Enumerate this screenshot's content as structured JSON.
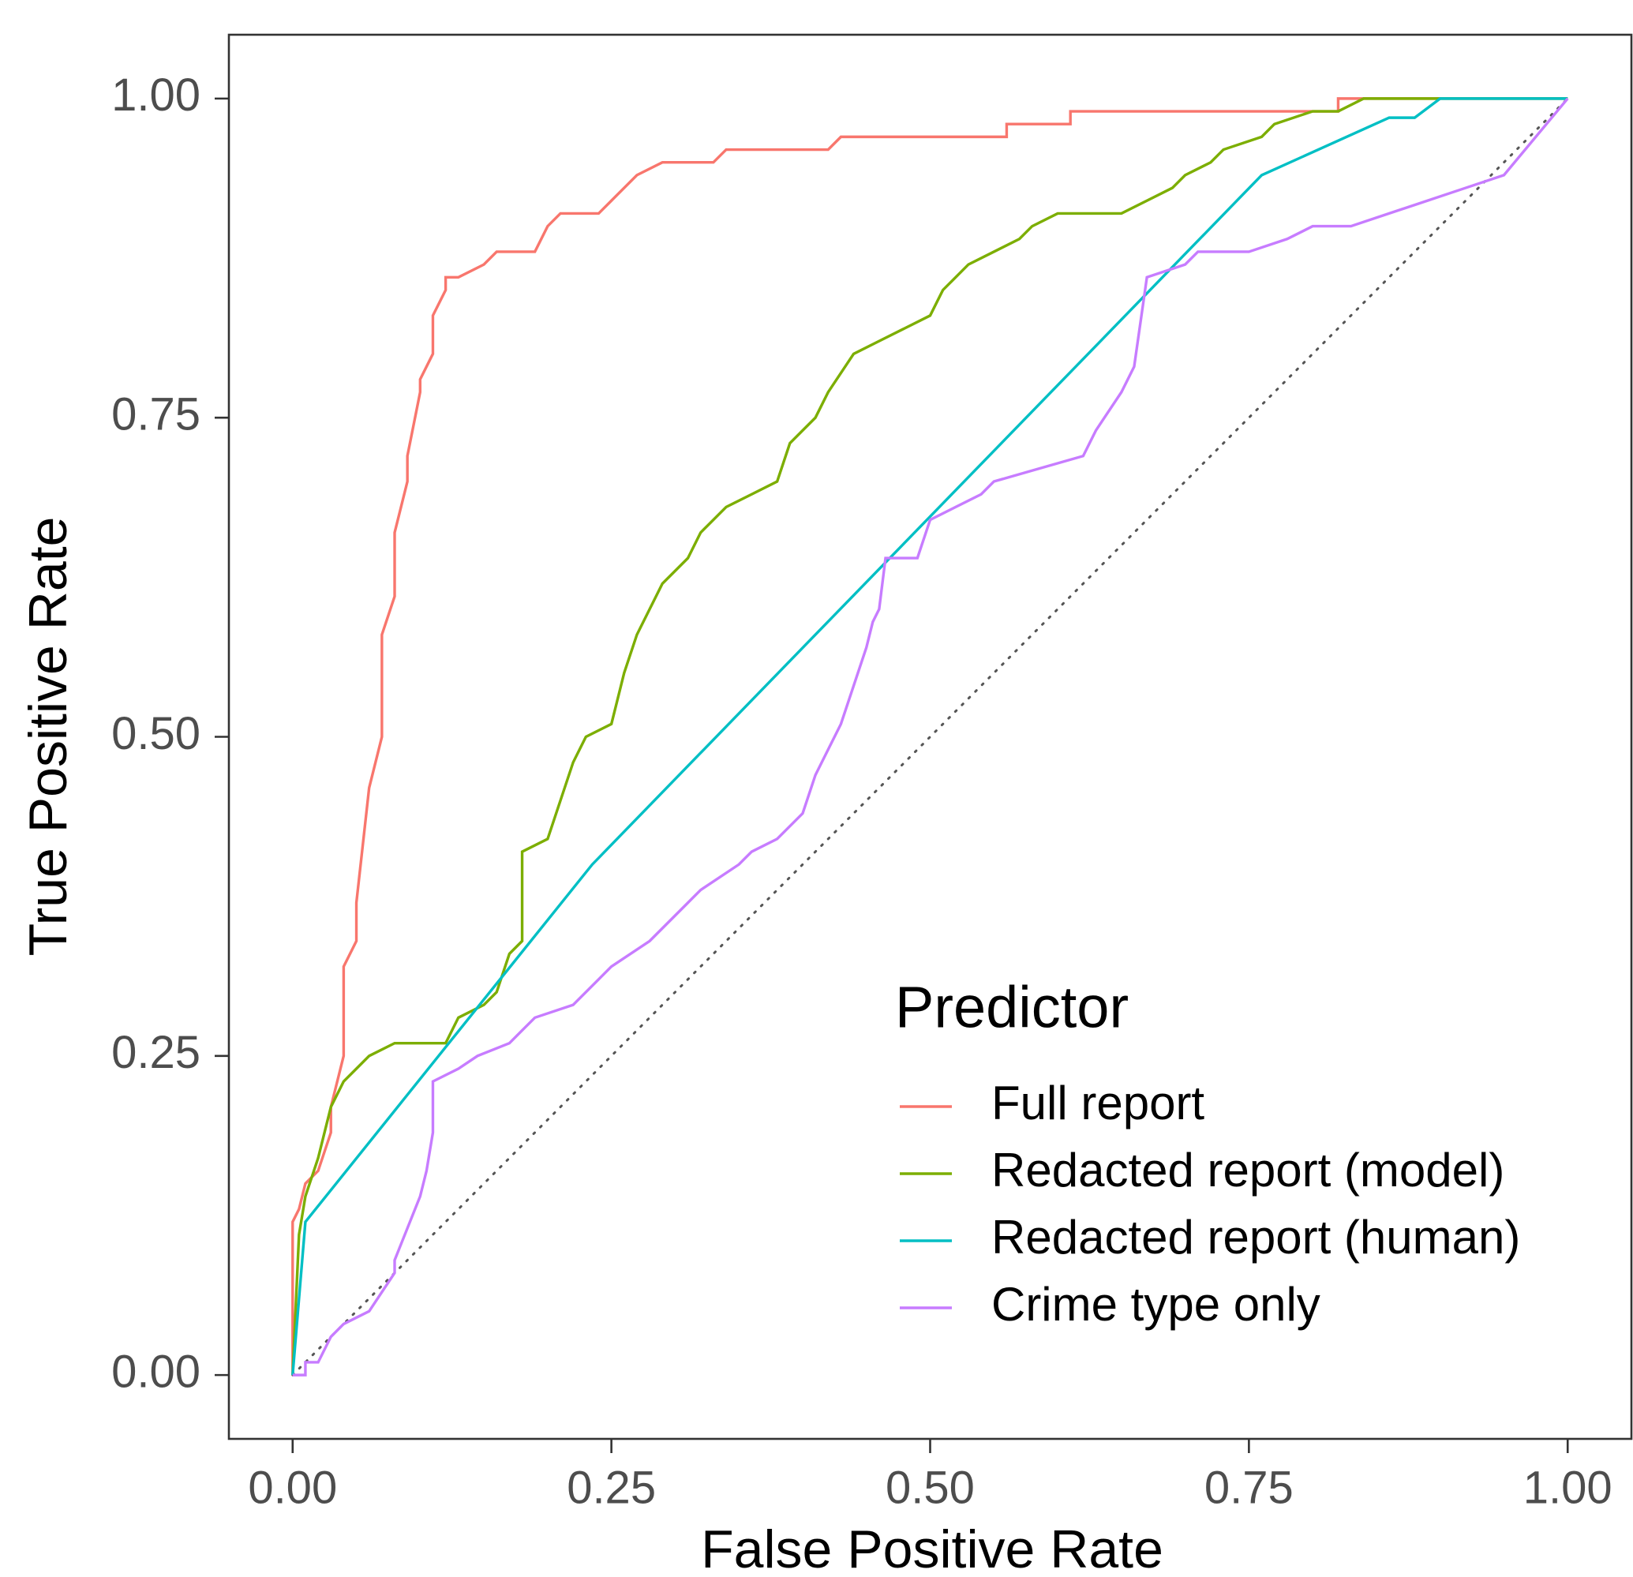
{
  "chart_data": {
    "type": "line",
    "xlabel": "False Positive Rate",
    "ylabel": "True Positive Rate",
    "legend_title": "Predictor",
    "legend": "bottom-right",
    "xlim": [
      -0.05,
      1.05
    ],
    "ylim": [
      -0.05,
      1.05
    ],
    "xticks": [
      {
        "value": 0,
        "label": "0.00"
      },
      {
        "value": 0.25,
        "label": "0.25"
      },
      {
        "value": 0.5,
        "label": "0.50"
      },
      {
        "value": 0.75,
        "label": "0.75"
      },
      {
        "value": 1,
        "label": "1.00"
      }
    ],
    "yticks": [
      {
        "value": 0,
        "label": "0.00"
      },
      {
        "value": 0.25,
        "label": "0.25"
      },
      {
        "value": 0.5,
        "label": "0.50"
      },
      {
        "value": 0.75,
        "label": "0.75"
      },
      {
        "value": 1,
        "label": "1.00"
      }
    ],
    "series": [
      {
        "name": "Full report",
        "color": "#F8766D",
        "x": [
          0,
          0,
          0.005,
          0.01,
          0.02,
          0.03,
          0.03,
          0.04,
          0.04,
          0.05,
          0.05,
          0.06,
          0.07,
          0.07,
          0.08,
          0.08,
          0.09,
          0.09,
          0.1,
          0.1,
          0.11,
          0.11,
          0.12,
          0.12,
          0.13,
          0.15,
          0.16,
          0.17,
          0.19,
          0.2,
          0.21,
          0.24,
          0.25,
          0.26,
          0.27,
          0.29,
          0.33,
          0.34,
          0.42,
          0.43,
          0.56,
          0.56,
          0.61,
          0.61,
          0.82,
          0.82,
          0.85,
          0.85,
          0.9,
          1.0
        ],
        "values": [
          0,
          0.12,
          0.13,
          0.15,
          0.16,
          0.19,
          0.21,
          0.25,
          0.32,
          0.34,
          0.37,
          0.46,
          0.5,
          0.58,
          0.61,
          0.66,
          0.7,
          0.72,
          0.77,
          0.78,
          0.8,
          0.83,
          0.85,
          0.86,
          0.86,
          0.87,
          0.88,
          0.88,
          0.88,
          0.9,
          0.91,
          0.91,
          0.92,
          0.93,
          0.94,
          0.95,
          0.95,
          0.96,
          0.96,
          0.97,
          0.97,
          0.98,
          0.98,
          0.99,
          0.99,
          1.0,
          1.0,
          1.0,
          1.0,
          1.0
        ]
      },
      {
        "name": "Redacted report (model)",
        "color": "#7CAE00",
        "x": [
          0,
          0.005,
          0.01,
          0.02,
          0.03,
          0.04,
          0.05,
          0.06,
          0.08,
          0.12,
          0.13,
          0.15,
          0.16,
          0.17,
          0.18,
          0.18,
          0.2,
          0.21,
          0.22,
          0.23,
          0.25,
          0.26,
          0.27,
          0.28,
          0.29,
          0.31,
          0.32,
          0.34,
          0.36,
          0.38,
          0.39,
          0.41,
          0.42,
          0.44,
          0.46,
          0.48,
          0.5,
          0.51,
          0.52,
          0.53,
          0.55,
          0.57,
          0.58,
          0.6,
          0.62,
          0.65,
          0.67,
          0.69,
          0.7,
          0.72,
          0.73,
          0.76,
          0.77,
          0.8,
          0.82,
          0.84,
          0.9,
          1.0
        ],
        "values": [
          0,
          0.11,
          0.14,
          0.17,
          0.21,
          0.23,
          0.24,
          0.25,
          0.26,
          0.26,
          0.28,
          0.29,
          0.3,
          0.33,
          0.34,
          0.41,
          0.42,
          0.45,
          0.48,
          0.5,
          0.51,
          0.55,
          0.58,
          0.6,
          0.62,
          0.64,
          0.66,
          0.68,
          0.69,
          0.7,
          0.73,
          0.75,
          0.77,
          0.8,
          0.81,
          0.82,
          0.83,
          0.85,
          0.86,
          0.87,
          0.88,
          0.89,
          0.9,
          0.91,
          0.91,
          0.91,
          0.92,
          0.93,
          0.94,
          0.95,
          0.96,
          0.97,
          0.98,
          0.99,
          0.99,
          1.0,
          1.0,
          1.0
        ]
      },
      {
        "name": "Redacted report (human)",
        "color": "#00BFC4",
        "x": [
          0,
          0.01,
          0.235,
          0.76,
          0.86,
          0.88,
          0.9,
          1.0
        ],
        "values": [
          0,
          0.12,
          0.4,
          0.94,
          0.985,
          0.985,
          1.0,
          1.0
        ]
      },
      {
        "name": "Crime type only",
        "color": "#C77CFF",
        "x": [
          0,
          0.01,
          0.01,
          0.02,
          0.03,
          0.04,
          0.06,
          0.08,
          0.08,
          0.1,
          0.105,
          0.11,
          0.11,
          0.13,
          0.145,
          0.17,
          0.18,
          0.19,
          0.22,
          0.24,
          0.25,
          0.28,
          0.31,
          0.32,
          0.35,
          0.36,
          0.38,
          0.4,
          0.41,
          0.42,
          0.43,
          0.44,
          0.45,
          0.455,
          0.46,
          0.465,
          0.49,
          0.5,
          0.52,
          0.54,
          0.55,
          0.585,
          0.62,
          0.63,
          0.65,
          0.66,
          0.67,
          0.7,
          0.71,
          0.72,
          0.75,
          0.78,
          0.8,
          0.83,
          0.86,
          0.89,
          0.92,
          0.95,
          1.0
        ],
        "values": [
          0,
          0,
          0.01,
          0.01,
          0.03,
          0.04,
          0.05,
          0.08,
          0.09,
          0.14,
          0.16,
          0.19,
          0.23,
          0.24,
          0.25,
          0.26,
          0.27,
          0.28,
          0.29,
          0.31,
          0.32,
          0.34,
          0.37,
          0.38,
          0.4,
          0.41,
          0.42,
          0.44,
          0.47,
          0.49,
          0.51,
          0.54,
          0.57,
          0.59,
          0.6,
          0.64,
          0.64,
          0.67,
          0.68,
          0.69,
          0.7,
          0.71,
          0.72,
          0.74,
          0.77,
          0.79,
          0.86,
          0.87,
          0.88,
          0.88,
          0.88,
          0.89,
          0.9,
          0.9,
          0.91,
          0.92,
          0.93,
          0.94,
          1.0
        ]
      }
    ]
  }
}
